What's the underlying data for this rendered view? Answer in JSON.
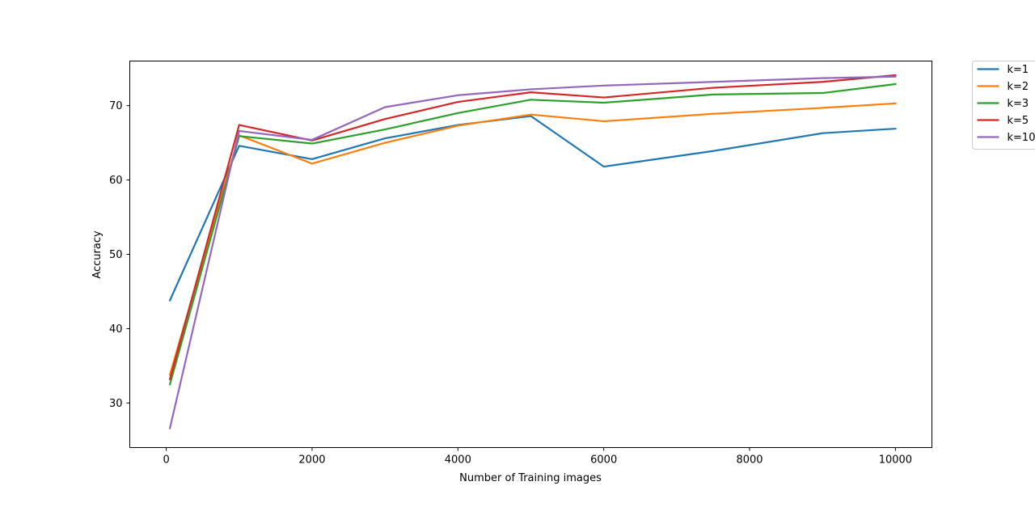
{
  "chart_data": {
    "type": "line",
    "title": "",
    "xlabel": "Number of Training images",
    "ylabel": "Accuracy",
    "xlim": [
      -500,
      10500
    ],
    "ylim": [
      24,
      76
    ],
    "xticks": [
      0,
      2000,
      4000,
      6000,
      8000,
      10000
    ],
    "yticks": [
      30,
      40,
      50,
      60,
      70
    ],
    "grid": false,
    "legend_position": "outside-top-right",
    "x": [
      50,
      1000,
      2000,
      3000,
      4000,
      5000,
      6000,
      7500,
      9000,
      10000
    ],
    "series": [
      {
        "name": "k=1",
        "color": "#1f77b4",
        "values": [
          43.8,
          64.6,
          62.8,
          65.6,
          67.4,
          68.6,
          61.8,
          63.9,
          66.3,
          66.9
        ]
      },
      {
        "name": "k=2",
        "color": "#ff7f0e",
        "values": [
          33.8,
          66.0,
          62.2,
          65.0,
          67.3,
          68.8,
          67.9,
          68.9,
          69.7,
          70.3
        ]
      },
      {
        "name": "k=3",
        "color": "#2ca02c",
        "values": [
          32.5,
          65.9,
          64.9,
          66.8,
          69.0,
          70.8,
          70.4,
          71.5,
          71.7,
          72.9
        ]
      },
      {
        "name": "k=5",
        "color": "#d62728",
        "values": [
          33.2,
          67.4,
          65.3,
          68.2,
          70.5,
          71.8,
          71.1,
          72.4,
          73.2,
          74.1
        ]
      },
      {
        "name": "k=10",
        "color": "#9467bd",
        "values": [
          26.6,
          66.6,
          65.4,
          69.8,
          71.4,
          72.2,
          72.7,
          73.2,
          73.7,
          73.9
        ]
      }
    ]
  }
}
